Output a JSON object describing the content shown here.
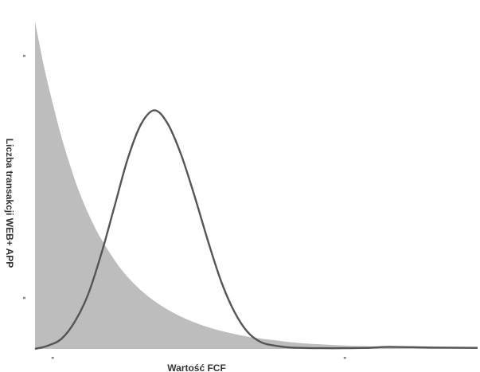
{
  "chart_data": {
    "type": "area",
    "xlabel": "Wartość FCF",
    "ylabel": "Liczba transakcji WEB+ APP",
    "xlim": [
      0,
      1
    ],
    "ylim": [
      0,
      1
    ],
    "grid": false,
    "legend": "none",
    "series": [
      {
        "style": "filled-area",
        "color": "#bdbdbd",
        "x": [
          0.0,
          0.02,
          0.04,
          0.06,
          0.08,
          0.1,
          0.13,
          0.16,
          0.2,
          0.25,
          0.3,
          0.35,
          0.4,
          0.45,
          0.5,
          0.55,
          0.6,
          0.65,
          0.7,
          0.75,
          0.8,
          0.85,
          0.9,
          0.95,
          1.0
        ],
        "y": [
          0.96,
          0.83,
          0.72,
          0.62,
          0.535,
          0.46,
          0.37,
          0.3,
          0.225,
          0.16,
          0.115,
          0.083,
          0.06,
          0.044,
          0.032,
          0.024,
          0.017,
          0.013,
          0.01,
          0.008,
          0.006,
          0.005,
          0.004,
          0.003,
          0.003
        ]
      },
      {
        "style": "line",
        "color": "#555555",
        "x": [
          0.0,
          0.03,
          0.06,
          0.09,
          0.12,
          0.15,
          0.18,
          0.21,
          0.24,
          0.27,
          0.3,
          0.33,
          0.36,
          0.39,
          0.42,
          0.45,
          0.48,
          0.51,
          0.54,
          0.57,
          0.6,
          0.65,
          0.7,
          0.75,
          0.8,
          0.9,
          1.0
        ],
        "y": [
          0.0,
          0.01,
          0.03,
          0.08,
          0.16,
          0.28,
          0.42,
          0.56,
          0.66,
          0.7,
          0.66,
          0.57,
          0.45,
          0.32,
          0.2,
          0.11,
          0.05,
          0.02,
          0.01,
          0.005,
          0.003,
          0.002,
          0.002,
          0.003,
          0.006,
          0.004,
          0.003
        ]
      }
    ],
    "y_ticks": [
      0.15,
      0.86
    ],
    "x_ticks": [
      0.04,
      0.7
    ]
  }
}
